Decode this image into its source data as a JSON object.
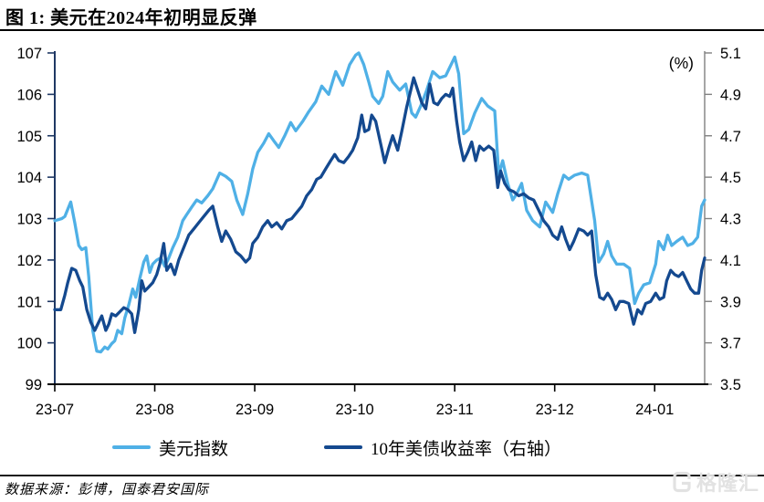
{
  "header": {
    "title": "图 1: 美元在2024年初明显反弹"
  },
  "footer": {
    "source": "数据来源：彭博，国泰君安国际",
    "watermark": "格隆汇"
  },
  "chart_data": {
    "type": "line",
    "title": "美元在2024年初明显反弹",
    "legend_position": "bottom",
    "grid": false,
    "x_axis": {
      "tick_labels": [
        "23-07",
        "23-08",
        "23-09",
        "23-10",
        "23-11",
        "23-12",
        "24-01"
      ],
      "months_shown": 6.5,
      "line_color": "#000000"
    },
    "left_axis": {
      "min": 99,
      "max": 107,
      "step": 1,
      "ticks": [
        "107",
        "106",
        "105",
        "104",
        "103",
        "102",
        "101",
        "100",
        "99"
      ],
      "line_color": "#1F3864"
    },
    "right_axis": {
      "min": 3.5,
      "max": 5.1,
      "step": 0.2,
      "unit": "(%)",
      "ticks": [
        "5.1",
        "4.9",
        "4.7",
        "4.5",
        "4.3",
        "4.1",
        "3.9",
        "3.7",
        "3.5"
      ],
      "line_color": "#808080"
    },
    "series": [
      {
        "name": "美元指数",
        "axis": "left",
        "color": "#4FB0E6",
        "x_unit": "months_since_2023_07",
        "points": [
          [
            0.0,
            102.95
          ],
          [
            0.07,
            103.0
          ],
          [
            0.1,
            103.05
          ],
          [
            0.16,
            103.4
          ],
          [
            0.2,
            102.9
          ],
          [
            0.24,
            102.35
          ],
          [
            0.27,
            102.25
          ],
          [
            0.31,
            102.3
          ],
          [
            0.34,
            101.6
          ],
          [
            0.38,
            100.3
          ],
          [
            0.42,
            99.8
          ],
          [
            0.46,
            99.78
          ],
          [
            0.5,
            99.9
          ],
          [
            0.53,
            99.85
          ],
          [
            0.57,
            99.98
          ],
          [
            0.6,
            100.05
          ],
          [
            0.63,
            100.3
          ],
          [
            0.67,
            100.22
          ],
          [
            0.7,
            100.6
          ],
          [
            0.74,
            100.92
          ],
          [
            0.78,
            101.3
          ],
          [
            0.81,
            101.1
          ],
          [
            0.85,
            101.55
          ],
          [
            0.89,
            101.95
          ],
          [
            0.92,
            102.1
          ],
          [
            0.95,
            101.7
          ],
          [
            0.98,
            101.9
          ],
          [
            1.02,
            102.0
          ],
          [
            1.06,
            102.05
          ],
          [
            1.1,
            101.85
          ],
          [
            1.14,
            102.05
          ],
          [
            1.18,
            102.3
          ],
          [
            1.23,
            102.55
          ],
          [
            1.28,
            102.95
          ],
          [
            1.32,
            103.1
          ],
          [
            1.37,
            103.28
          ],
          [
            1.42,
            103.45
          ],
          [
            1.47,
            103.38
          ],
          [
            1.53,
            103.55
          ],
          [
            1.58,
            103.72
          ],
          [
            1.65,
            104.1
          ],
          [
            1.71,
            104.02
          ],
          [
            1.77,
            103.9
          ],
          [
            1.82,
            103.45
          ],
          [
            1.88,
            103.1
          ],
          [
            1.93,
            103.6
          ],
          [
            1.98,
            104.2
          ],
          [
            2.03,
            104.6
          ],
          [
            2.09,
            104.82
          ],
          [
            2.14,
            105.05
          ],
          [
            2.19,
            104.88
          ],
          [
            2.24,
            104.72
          ],
          [
            2.3,
            105.0
          ],
          [
            2.36,
            105.32
          ],
          [
            2.41,
            105.12
          ],
          [
            2.48,
            105.35
          ],
          [
            2.54,
            105.58
          ],
          [
            2.61,
            105.82
          ],
          [
            2.67,
            106.2
          ],
          [
            2.74,
            106.0
          ],
          [
            2.81,
            106.55
          ],
          [
            2.88,
            106.22
          ],
          [
            2.95,
            106.72
          ],
          [
            3.01,
            106.95
          ],
          [
            3.04,
            107.0
          ],
          [
            3.09,
            106.72
          ],
          [
            3.14,
            106.3
          ],
          [
            3.18,
            105.95
          ],
          [
            3.24,
            105.78
          ],
          [
            3.28,
            105.95
          ],
          [
            3.33,
            106.55
          ],
          [
            3.38,
            106.3
          ],
          [
            3.45,
            106.1
          ],
          [
            3.51,
            106.25
          ],
          [
            3.57,
            105.55
          ],
          [
            3.61,
            105.45
          ],
          [
            3.66,
            105.72
          ],
          [
            3.72,
            106.1
          ],
          [
            3.78,
            106.55
          ],
          [
            3.85,
            106.4
          ],
          [
            3.91,
            106.45
          ],
          [
            3.95,
            106.65
          ],
          [
            4.0,
            106.9
          ],
          [
            4.04,
            106.5
          ],
          [
            4.09,
            105.05
          ],
          [
            4.14,
            105.15
          ],
          [
            4.2,
            105.55
          ],
          [
            4.27,
            105.9
          ],
          [
            4.33,
            105.72
          ],
          [
            4.4,
            105.6
          ],
          [
            4.44,
            104.05
          ],
          [
            4.48,
            104.4
          ],
          [
            4.53,
            103.85
          ],
          [
            4.58,
            103.45
          ],
          [
            4.62,
            103.6
          ],
          [
            4.67,
            103.85
          ],
          [
            4.72,
            103.2
          ],
          [
            4.78,
            102.95
          ],
          [
            4.85,
            102.8
          ],
          [
            4.91,
            103.4
          ],
          [
            4.98,
            103.15
          ],
          [
            5.03,
            103.6
          ],
          [
            5.09,
            104.05
          ],
          [
            5.14,
            103.95
          ],
          [
            5.2,
            104.05
          ],
          [
            5.27,
            104.1
          ],
          [
            5.33,
            104.05
          ],
          [
            5.4,
            102.95
          ],
          [
            5.44,
            101.95
          ],
          [
            5.49,
            102.15
          ],
          [
            5.53,
            102.45
          ],
          [
            5.57,
            102.1
          ],
          [
            5.62,
            101.9
          ],
          [
            5.69,
            101.9
          ],
          [
            5.75,
            101.8
          ],
          [
            5.8,
            100.95
          ],
          [
            5.84,
            101.2
          ],
          [
            5.89,
            101.4
          ],
          [
            5.95,
            101.45
          ],
          [
            6.01,
            101.9
          ],
          [
            6.04,
            102.45
          ],
          [
            6.09,
            102.25
          ],
          [
            6.13,
            102.6
          ],
          [
            6.17,
            102.35
          ],
          [
            6.22,
            102.45
          ],
          [
            6.28,
            102.55
          ],
          [
            6.33,
            102.35
          ],
          [
            6.38,
            102.4
          ],
          [
            6.43,
            102.55
          ],
          [
            6.47,
            103.3
          ],
          [
            6.5,
            103.45
          ]
        ]
      },
      {
        "name": "10年美债收益率（右轴）",
        "axis": "right",
        "color": "#14498F",
        "x_unit": "months_since_2023_07",
        "points": [
          [
            0.0,
            3.86
          ],
          [
            0.06,
            3.86
          ],
          [
            0.1,
            3.93
          ],
          [
            0.13,
            3.99
          ],
          [
            0.17,
            4.06
          ],
          [
            0.21,
            4.05
          ],
          [
            0.25,
            4.0
          ],
          [
            0.28,
            3.97
          ],
          [
            0.32,
            3.86
          ],
          [
            0.36,
            3.8
          ],
          [
            0.4,
            3.76
          ],
          [
            0.44,
            3.8
          ],
          [
            0.47,
            3.83
          ],
          [
            0.51,
            3.76
          ],
          [
            0.54,
            3.79
          ],
          [
            0.57,
            3.84
          ],
          [
            0.61,
            3.83
          ],
          [
            0.65,
            3.85
          ],
          [
            0.69,
            3.87
          ],
          [
            0.73,
            3.86
          ],
          [
            0.77,
            3.84
          ],
          [
            0.8,
            3.75
          ],
          [
            0.84,
            3.86
          ],
          [
            0.87,
            4.0
          ],
          [
            0.9,
            3.95
          ],
          [
            0.94,
            3.97
          ],
          [
            0.98,
            3.99
          ],
          [
            1.02,
            4.03
          ],
          [
            1.05,
            4.08
          ],
          [
            1.09,
            4.18
          ],
          [
            1.12,
            4.05
          ],
          [
            1.16,
            4.08
          ],
          [
            1.2,
            4.03
          ],
          [
            1.24,
            4.1
          ],
          [
            1.29,
            4.16
          ],
          [
            1.34,
            4.22
          ],
          [
            1.39,
            4.25
          ],
          [
            1.44,
            4.28
          ],
          [
            1.49,
            4.31
          ],
          [
            1.54,
            4.34
          ],
          [
            1.58,
            4.36
          ],
          [
            1.63,
            4.26
          ],
          [
            1.67,
            4.19
          ],
          [
            1.71,
            4.24
          ],
          [
            1.76,
            4.2
          ],
          [
            1.81,
            4.14
          ],
          [
            1.86,
            4.12
          ],
          [
            1.91,
            4.09
          ],
          [
            1.95,
            4.11
          ],
          [
            1.98,
            4.18
          ],
          [
            2.03,
            4.21
          ],
          [
            2.08,
            4.26
          ],
          [
            2.13,
            4.29
          ],
          [
            2.17,
            4.26
          ],
          [
            2.22,
            4.28
          ],
          [
            2.27,
            4.25
          ],
          [
            2.32,
            4.29
          ],
          [
            2.37,
            4.3
          ],
          [
            2.42,
            4.33
          ],
          [
            2.47,
            4.36
          ],
          [
            2.52,
            4.41
          ],
          [
            2.57,
            4.44
          ],
          [
            2.62,
            4.49
          ],
          [
            2.66,
            4.5
          ],
          [
            2.71,
            4.54
          ],
          [
            2.76,
            4.58
          ],
          [
            2.8,
            4.61
          ],
          [
            2.84,
            4.58
          ],
          [
            2.89,
            4.57
          ],
          [
            2.94,
            4.6
          ],
          [
            2.98,
            4.63
          ],
          [
            3.03,
            4.69
          ],
          [
            3.07,
            4.8
          ],
          [
            3.1,
            4.72
          ],
          [
            3.14,
            4.73
          ],
          [
            3.17,
            4.8
          ],
          [
            3.21,
            4.77
          ],
          [
            3.26,
            4.66
          ],
          [
            3.3,
            4.57
          ],
          [
            3.34,
            4.64
          ],
          [
            3.38,
            4.7
          ],
          [
            3.43,
            4.63
          ],
          [
            3.47,
            4.72
          ],
          [
            3.52,
            4.84
          ],
          [
            3.56,
            4.92
          ],
          [
            3.59,
            4.98
          ],
          [
            3.63,
            4.92
          ],
          [
            3.67,
            4.86
          ],
          [
            3.71,
            4.83
          ],
          [
            3.75,
            4.95
          ],
          [
            3.79,
            4.86
          ],
          [
            3.83,
            4.85
          ],
          [
            3.87,
            4.88
          ],
          [
            3.91,
            4.9
          ],
          [
            3.95,
            4.89
          ],
          [
            3.98,
            4.93
          ],
          [
            4.02,
            4.77
          ],
          [
            4.05,
            4.67
          ],
          [
            4.09,
            4.58
          ],
          [
            4.13,
            4.62
          ],
          [
            4.17,
            4.67
          ],
          [
            4.21,
            4.58
          ],
          [
            4.25,
            4.65
          ],
          [
            4.29,
            4.63
          ],
          [
            4.34,
            4.65
          ],
          [
            4.39,
            4.63
          ],
          [
            4.43,
            4.45
          ],
          [
            4.46,
            4.53
          ],
          [
            4.5,
            4.47
          ],
          [
            4.54,
            4.44
          ],
          [
            4.59,
            4.43
          ],
          [
            4.64,
            4.41
          ],
          [
            4.69,
            4.42
          ],
          [
            4.74,
            4.4
          ],
          [
            4.79,
            4.39
          ],
          [
            4.84,
            4.34
          ],
          [
            4.89,
            4.29
          ],
          [
            4.94,
            4.26
          ],
          [
            4.98,
            4.22
          ],
          [
            5.03,
            4.2
          ],
          [
            5.07,
            4.26
          ],
          [
            5.11,
            4.2
          ],
          [
            5.15,
            4.15
          ],
          [
            5.19,
            4.19
          ],
          [
            5.24,
            4.25
          ],
          [
            5.29,
            4.24
          ],
          [
            5.33,
            4.22
          ],
          [
            5.37,
            4.24
          ],
          [
            5.41,
            4.03
          ],
          [
            5.45,
            3.92
          ],
          [
            5.49,
            3.91
          ],
          [
            5.53,
            3.94
          ],
          [
            5.57,
            3.91
          ],
          [
            5.61,
            3.86
          ],
          [
            5.65,
            3.9
          ],
          [
            5.69,
            3.9
          ],
          [
            5.74,
            3.89
          ],
          [
            5.79,
            3.79
          ],
          [
            5.83,
            3.86
          ],
          [
            5.87,
            3.84
          ],
          [
            5.91,
            3.89
          ],
          [
            5.96,
            3.9
          ],
          [
            6.01,
            3.94
          ],
          [
            6.05,
            3.91
          ],
          [
            6.09,
            3.92
          ],
          [
            6.12,
            4.0
          ],
          [
            6.16,
            4.05
          ],
          [
            6.2,
            4.03
          ],
          [
            6.24,
            4.02
          ],
          [
            6.28,
            4.04
          ],
          [
            6.32,
            4.0
          ],
          [
            6.36,
            3.96
          ],
          [
            6.4,
            3.94
          ],
          [
            6.44,
            3.94
          ],
          [
            6.47,
            4.05
          ],
          [
            6.5,
            4.11
          ]
        ]
      }
    ]
  }
}
